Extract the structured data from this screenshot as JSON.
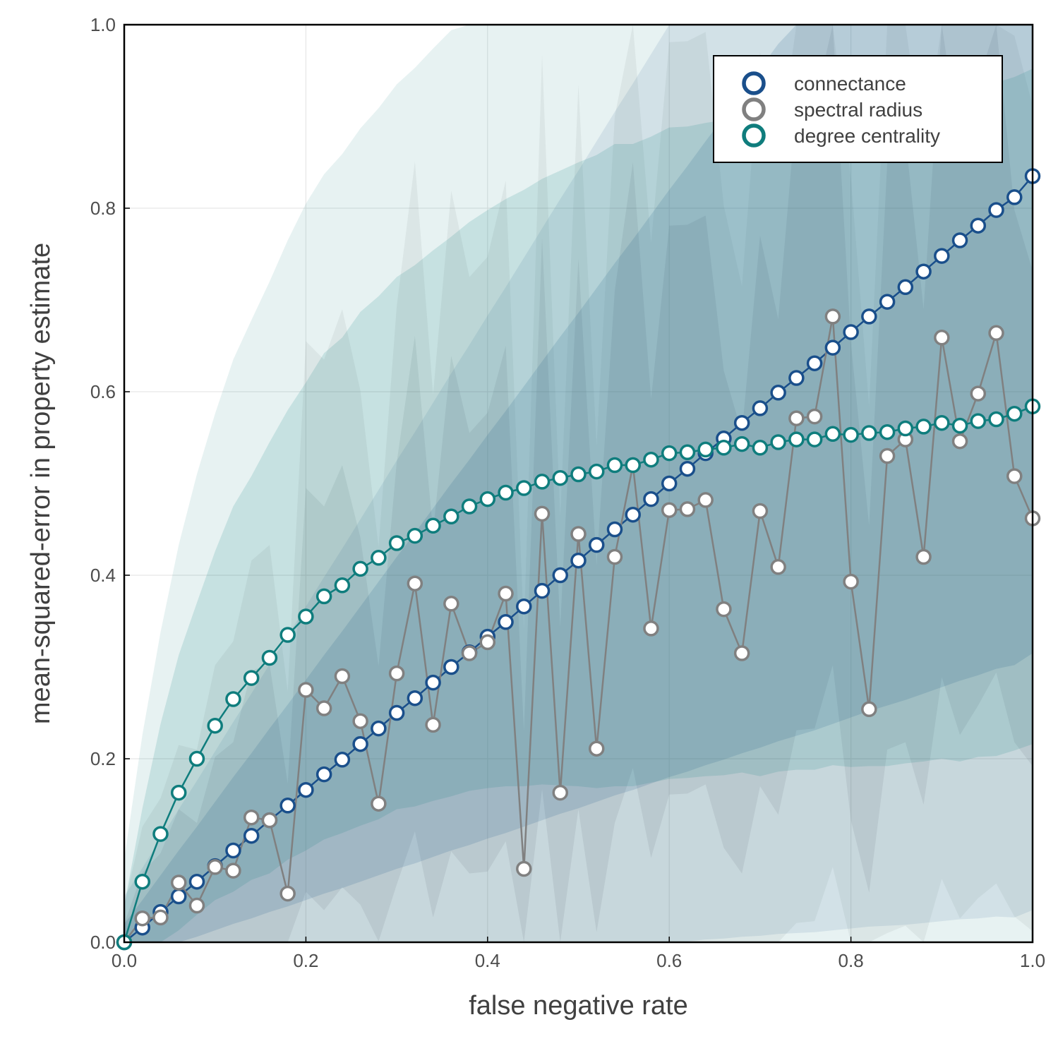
{
  "chart_data": {
    "type": "line",
    "xlabel": "false negative rate",
    "ylabel": "mean-squared-error in property estimate",
    "xlim": [
      0,
      1
    ],
    "ylim": [
      0,
      1
    ],
    "xticks": [
      "0.0",
      "0.2",
      "0.4",
      "0.6",
      "0.8",
      "1.0"
    ],
    "yticks": [
      "0.0",
      "0.2",
      "0.4",
      "0.6",
      "0.8",
      "1.0"
    ],
    "grid": true,
    "legend_position": "top-right",
    "x": [
      0.0,
      0.02,
      0.04,
      0.06,
      0.08,
      0.1,
      0.12,
      0.14,
      0.16,
      0.18,
      0.2,
      0.22,
      0.24,
      0.26,
      0.28,
      0.3,
      0.32,
      0.34,
      0.36,
      0.38,
      0.4,
      0.42,
      0.44,
      0.46,
      0.48,
      0.5,
      0.52,
      0.54,
      0.56,
      0.58,
      0.6,
      0.62,
      0.64,
      0.66,
      0.68,
      0.7,
      0.72,
      0.74,
      0.76,
      0.78,
      0.8,
      0.82,
      0.84,
      0.86,
      0.88,
      0.9,
      0.92,
      0.94,
      0.96,
      0.98,
      1.0
    ],
    "series": [
      {
        "name": "connectance",
        "color": "#1a4f8b",
        "values": [
          0.0,
          0.016,
          0.033,
          0.05,
          0.066,
          0.083,
          0.1,
          0.116,
          0.133,
          0.149,
          0.166,
          0.183,
          0.199,
          0.216,
          0.233,
          0.25,
          0.266,
          0.283,
          0.3,
          0.316,
          0.333,
          0.349,
          0.366,
          0.383,
          0.4,
          0.416,
          0.433,
          0.45,
          0.466,
          0.483,
          0.5,
          0.516,
          0.533,
          0.549,
          0.566,
          0.582,
          0.599,
          0.615,
          0.631,
          0.648,
          0.665,
          0.682,
          0.698,
          0.714,
          0.731,
          0.748,
          0.765,
          0.781,
          0.798,
          0.812,
          0.835
        ],
        "band_inner": [
          0.02,
          0.03,
          0.04,
          0.05,
          0.06,
          0.07,
          0.08,
          0.09,
          0.1,
          0.11,
          0.12,
          0.13,
          0.14,
          0.15,
          0.16,
          0.17,
          0.18,
          0.19,
          0.2,
          0.21,
          0.22,
          0.23,
          0.24,
          0.25,
          0.26,
          0.27,
          0.28,
          0.29,
          0.3,
          0.31,
          0.32,
          0.33,
          0.34,
          0.35,
          0.36,
          0.37,
          0.38,
          0.39,
          0.4,
          0.41,
          0.42,
          0.43,
          0.44,
          0.45,
          0.46,
          0.47,
          0.48,
          0.49,
          0.5,
          0.51,
          0.52
        ],
        "band_outer": [
          0.05,
          0.065,
          0.08,
          0.095,
          0.11,
          0.125,
          0.14,
          0.155,
          0.17,
          0.185,
          0.2,
          0.215,
          0.23,
          0.245,
          0.26,
          0.275,
          0.29,
          0.305,
          0.32,
          0.335,
          0.35,
          0.365,
          0.38,
          0.395,
          0.41,
          0.425,
          0.44,
          0.455,
          0.47,
          0.485,
          0.5,
          0.515,
          0.53,
          0.545,
          0.56,
          0.575,
          0.59,
          0.605,
          0.62,
          0.635,
          0.65,
          0.665,
          0.68,
          0.695,
          0.71,
          0.725,
          0.74,
          0.755,
          0.77,
          0.785,
          0.8
        ]
      },
      {
        "name": "spectral radius",
        "color": "#808080",
        "values": [
          0.0,
          0.026,
          0.027,
          0.065,
          0.04,
          0.082,
          0.078,
          0.136,
          0.133,
          0.053,
          0.275,
          0.255,
          0.29,
          0.241,
          0.151,
          0.293,
          0.391,
          0.237,
          0.369,
          0.315,
          0.327,
          0.38,
          0.08,
          0.467,
          0.163,
          0.445,
          0.211,
          0.42,
          0.52,
          0.342,
          0.471,
          0.472,
          0.482,
          0.363,
          0.315,
          0.47,
          0.409,
          0.571,
          0.573,
          0.682,
          0.393,
          0.254,
          0.53,
          0.548,
          0.42,
          0.659,
          0.546,
          0.598,
          0.664,
          0.508,
          0.462
        ],
        "band_inner": [
          0.02,
          0.05,
          0.07,
          0.08,
          0.09,
          0.12,
          0.14,
          0.16,
          0.17,
          0.12,
          0.22,
          0.22,
          0.23,
          0.2,
          0.15,
          0.23,
          0.27,
          0.21,
          0.27,
          0.24,
          0.25,
          0.27,
          0.15,
          0.3,
          0.18,
          0.3,
          0.2,
          0.29,
          0.33,
          0.25,
          0.31,
          0.31,
          0.31,
          0.26,
          0.24,
          0.3,
          0.27,
          0.34,
          0.34,
          0.38,
          0.26,
          0.2,
          0.32,
          0.33,
          0.27,
          0.37,
          0.32,
          0.34,
          0.37,
          0.29,
          0.27
        ],
        "band_outer": [
          0.04,
          0.1,
          0.13,
          0.15,
          0.17,
          0.22,
          0.25,
          0.28,
          0.3,
          0.22,
          0.38,
          0.38,
          0.4,
          0.36,
          0.28,
          0.4,
          0.46,
          0.36,
          0.45,
          0.41,
          0.42,
          0.45,
          0.26,
          0.5,
          0.3,
          0.49,
          0.33,
          0.48,
          0.54,
          0.42,
          0.51,
          0.51,
          0.51,
          0.44,
          0.4,
          0.5,
          0.45,
          0.55,
          0.55,
          0.6,
          0.44,
          0.33,
          0.52,
          0.53,
          0.44,
          0.59,
          0.52,
          0.55,
          0.6,
          0.48,
          0.45
        ]
      },
      {
        "name": "degree centrality",
        "color": "#0f7d7d",
        "values": [
          0.0,
          0.066,
          0.118,
          0.163,
          0.2,
          0.236,
          0.265,
          0.288,
          0.31,
          0.335,
          0.355,
          0.377,
          0.389,
          0.407,
          0.419,
          0.435,
          0.443,
          0.454,
          0.464,
          0.475,
          0.483,
          0.49,
          0.495,
          0.502,
          0.506,
          0.51,
          0.513,
          0.52,
          0.52,
          0.526,
          0.533,
          0.534,
          0.537,
          0.539,
          0.543,
          0.539,
          0.545,
          0.548,
          0.548,
          0.554,
          0.553,
          0.555,
          0.556,
          0.56,
          0.562,
          0.566,
          0.563,
          0.568,
          0.57,
          0.576,
          0.584
        ],
        "band_inner": [
          0.04,
          0.08,
          0.12,
          0.15,
          0.17,
          0.19,
          0.21,
          0.22,
          0.235,
          0.245,
          0.255,
          0.265,
          0.27,
          0.28,
          0.285,
          0.29,
          0.295,
          0.3,
          0.305,
          0.31,
          0.315,
          0.32,
          0.325,
          0.33,
          0.335,
          0.34,
          0.345,
          0.35,
          0.35,
          0.352,
          0.355,
          0.355,
          0.356,
          0.357,
          0.358,
          0.358,
          0.359,
          0.36,
          0.36,
          0.361,
          0.362,
          0.363,
          0.364,
          0.365,
          0.365,
          0.366,
          0.366,
          0.366,
          0.367,
          0.367,
          0.368
        ],
        "band_outer": [
          0.09,
          0.16,
          0.22,
          0.27,
          0.31,
          0.34,
          0.37,
          0.39,
          0.41,
          0.43,
          0.45,
          0.46,
          0.47,
          0.48,
          0.49,
          0.5,
          0.51,
          0.52,
          0.53,
          0.54,
          0.545,
          0.55,
          0.555,
          0.56,
          0.565,
          0.57,
          0.575,
          0.58,
          0.585,
          0.59,
          0.595,
          0.6,
          0.605,
          0.61,
          0.615,
          0.62,
          0.625,
          0.63,
          0.635,
          0.64,
          0.645,
          0.65,
          0.655,
          0.66,
          0.665,
          0.67,
          0.675,
          0.68,
          0.685,
          0.69,
          0.7
        ]
      }
    ]
  }
}
